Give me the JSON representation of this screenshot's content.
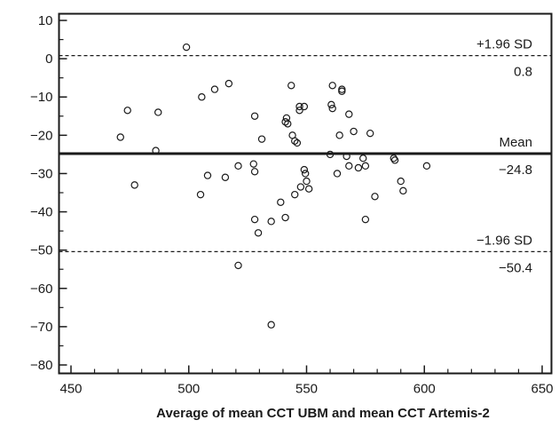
{
  "chart_data": {
    "type": "scatter",
    "xlabel": "Average of mean CCT UBM and mean CCT Artemis-2",
    "ylabel": "",
    "xlim": [
      450,
      650
    ],
    "ylim": [
      -82,
      12
    ],
    "x_ticks": [
      450,
      500,
      550,
      600,
      650
    ],
    "y_ticks": [
      10,
      0,
      -10,
      -20,
      -30,
      -40,
      -50,
      -60,
      -70,
      -80
    ],
    "x_tick_labels": [
      "450",
      "500",
      "550",
      "600",
      "650"
    ],
    "y_tick_labels": [
      "10",
      "0",
      "−10",
      "−20",
      "−30",
      "−40",
      "−50",
      "−60",
      "−70",
      "−80"
    ],
    "reference_lines": [
      {
        "name": "+1.96 SD",
        "value": 0.8,
        "value_label": "0.8",
        "style": "dashed"
      },
      {
        "name": "Mean",
        "value": -24.8,
        "value_label": "−24.8",
        "style": "solid"
      },
      {
        "name": "−1.96 SD",
        "value": -50.4,
        "value_label": "−50.4",
        "style": "dashed"
      }
    ],
    "points": [
      [
        471,
        -20.5
      ],
      [
        474,
        -13.5
      ],
      [
        477,
        -33
      ],
      [
        486,
        -24
      ],
      [
        487,
        -14
      ],
      [
        499,
        3
      ],
      [
        505,
        -35.5
      ],
      [
        505.5,
        -10
      ],
      [
        508,
        -30.5
      ],
      [
        511,
        -8
      ],
      [
        515.5,
        -31
      ],
      [
        517,
        -6.5
      ],
      [
        521,
        -54
      ],
      [
        521,
        -28
      ],
      [
        527.5,
        -27.5
      ],
      [
        528,
        -15
      ],
      [
        528,
        -29.5
      ],
      [
        528,
        -42
      ],
      [
        529.5,
        -45.5
      ],
      [
        531,
        -21
      ],
      [
        535,
        -69.5
      ],
      [
        535,
        -42.5
      ],
      [
        539,
        -37.5
      ],
      [
        541,
        -41.5
      ],
      [
        541,
        -16.5
      ],
      [
        541.5,
        -15.5
      ],
      [
        542,
        -17
      ],
      [
        543.5,
        -7
      ],
      [
        544,
        -20
      ],
      [
        545,
        -21.5
      ],
      [
        545,
        -35.5
      ],
      [
        546,
        -22
      ],
      [
        547,
        -12.5
      ],
      [
        547,
        -13.5
      ],
      [
        547.5,
        -33.5
      ],
      [
        549,
        -12.5
      ],
      [
        549,
        -29
      ],
      [
        549.5,
        -30
      ],
      [
        550,
        -32
      ],
      [
        551,
        -34
      ],
      [
        560,
        -25
      ],
      [
        560.5,
        -12
      ],
      [
        561,
        -7
      ],
      [
        561,
        -13
      ],
      [
        563,
        -30
      ],
      [
        564,
        -20
      ],
      [
        565,
        -8
      ],
      [
        565,
        -8.5
      ],
      [
        567,
        -25.5
      ],
      [
        568,
        -14.5
      ],
      [
        568,
        -28
      ],
      [
        570,
        -19
      ],
      [
        572,
        -28.5
      ],
      [
        574,
        -26
      ],
      [
        575,
        -28
      ],
      [
        575,
        -42
      ],
      [
        577,
        -19.5
      ],
      [
        579,
        -36
      ],
      [
        587,
        -26
      ],
      [
        587.5,
        -26.5
      ],
      [
        590,
        -32
      ],
      [
        591,
        -34.5
      ],
      [
        601,
        -28
      ]
    ],
    "grid": false
  }
}
